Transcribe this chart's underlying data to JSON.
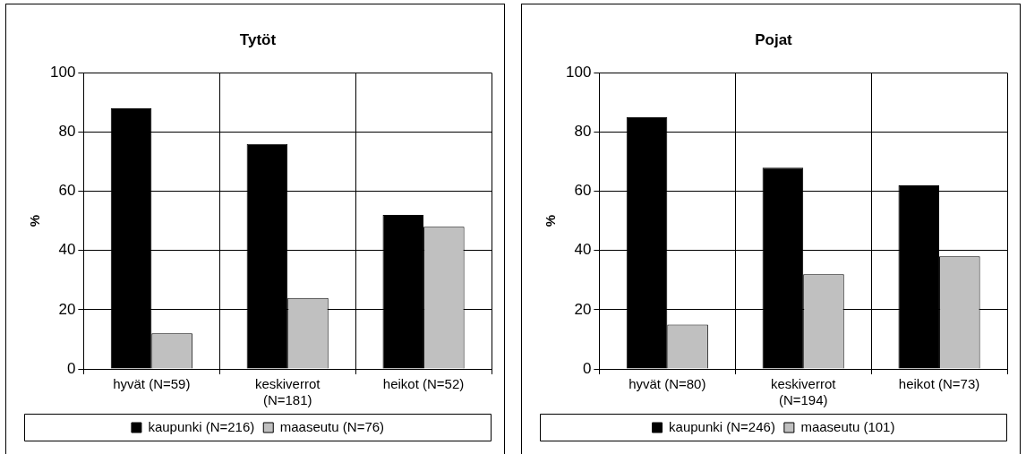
{
  "chart_data": [
    {
      "type": "bar",
      "title": "Tytöt",
      "ylabel": "%",
      "categories": [
        "hyvät (N=59)",
        "keskiverrot (N=181)",
        "heikot (N=52)"
      ],
      "series": [
        {
          "name": "kaupunki (N=216)",
          "color": "#000000",
          "values": [
            88,
            76,
            52
          ]
        },
        {
          "name": "maaseutu (N=76)",
          "color": "#c0c0c0",
          "values": [
            12,
            24,
            48
          ]
        }
      ],
      "ylim": [
        0,
        100
      ],
      "yticks": [
        0,
        20,
        40,
        60,
        80,
        100
      ],
      "grid": true,
      "legend": "bottom"
    },
    {
      "type": "bar",
      "title": "Pojat",
      "ylabel": "%",
      "categories": [
        "hyvät (N=80)",
        "keskiverrot (N=194)",
        "heikot (N=73)"
      ],
      "series": [
        {
          "name": "kaupunki (N=246)",
          "color": "#000000",
          "values": [
            85,
            68,
            62
          ]
        },
        {
          "name": "maaseutu (101)",
          "color": "#c0c0c0",
          "values": [
            15,
            32,
            38
          ]
        }
      ],
      "ylim": [
        0,
        100
      ],
      "yticks": [
        0,
        20,
        40,
        60,
        80,
        100
      ],
      "grid": true,
      "legend": "bottom"
    }
  ]
}
